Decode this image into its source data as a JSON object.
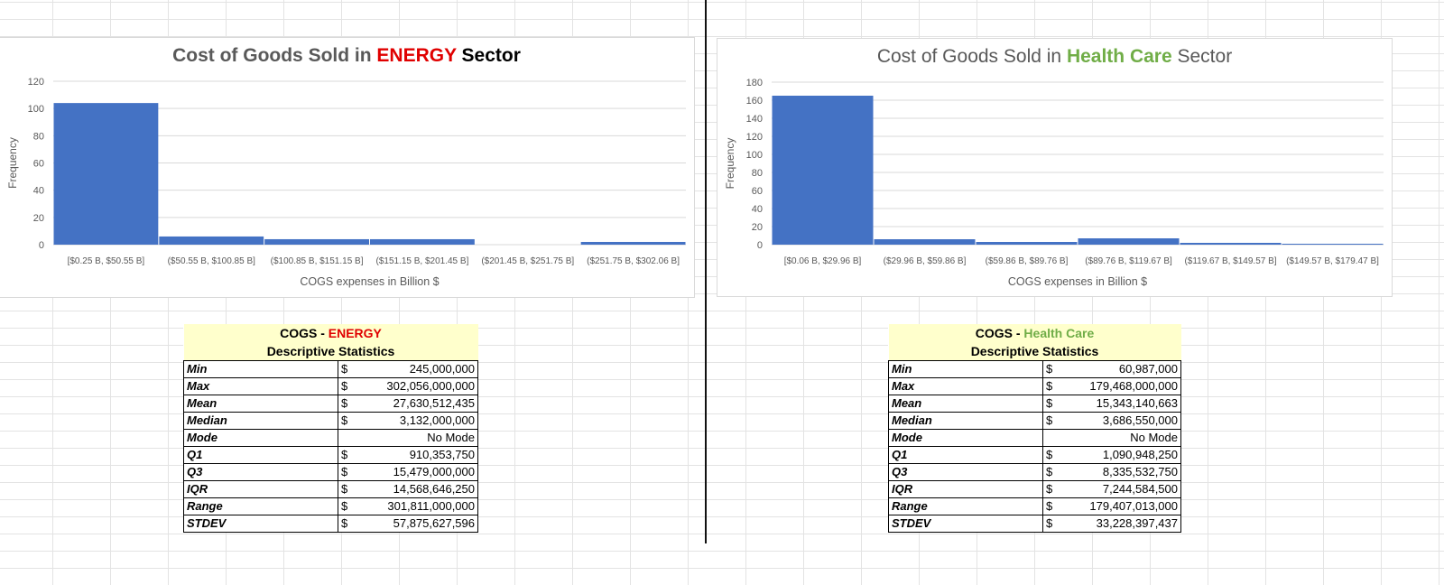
{
  "charts": [
    {
      "id": "energy",
      "title_pre": "Cost of Goods Sold in ",
      "title_highlight": "ENERGY",
      "title_post": " Sector",
      "highlight_color": "#e00000",
      "bar_color": "#4472c4",
      "chart_data": {
        "type": "bar",
        "title": "Cost of Goods Sold in ENERGY Sector",
        "xlabel": "COGS expenses in Billion $",
        "ylabel": "Frequency",
        "categories": [
          "[$0.25 B, $50.55 B]",
          "($50.55 B, $100.85 B]",
          "($100.85 B, $151.15 B]",
          "($151.15 B, $201.45 B]",
          "($201.45 B, $251.75 B]",
          "($251.75 B, $302.06 B]"
        ],
        "values": [
          104,
          6,
          4,
          4,
          0,
          2
        ],
        "ylim": [
          0,
          120
        ],
        "yticks": [
          0,
          20,
          40,
          60,
          80,
          100,
          120
        ],
        "grid": true
      }
    },
    {
      "id": "health",
      "title_pre": "Cost of Goods Sold in ",
      "title_highlight": "Health Care",
      "title_post": " Sector",
      "highlight_color": "#70ad47",
      "bar_color": "#4472c4",
      "chart_data": {
        "type": "bar",
        "title": "Cost of Goods Sold in Health Care Sector",
        "xlabel": "COGS expenses in Billion $",
        "ylabel": "Frequency",
        "categories": [
          "[$0.06 B, $29.96 B]",
          "($29.96 B, $59.86 B]",
          "($59.86 B, $89.76 B]",
          "($89.76 B, $119.67 B]",
          "($119.67 B, $149.57 B]",
          "($149.57 B, $179.47 B]"
        ],
        "values": [
          165,
          6,
          3,
          7,
          2,
          1
        ],
        "ylim": [
          0,
          180
        ],
        "yticks": [
          0,
          20,
          40,
          60,
          80,
          100,
          120,
          140,
          160,
          180
        ],
        "grid": true
      }
    }
  ],
  "tables": [
    {
      "id": "energy",
      "title_pre": "COGS - ",
      "title_highlight": "ENERGY",
      "highlight_color": "#e00000",
      "subtitle": "Descriptive Statistics",
      "currency": "$",
      "rows": [
        {
          "label": "Min",
          "value": "245,000,000",
          "currency": true
        },
        {
          "label": "Max",
          "value": "302,056,000,000",
          "currency": true
        },
        {
          "label": "Mean",
          "value": "27,630,512,435",
          "currency": true
        },
        {
          "label": "Median",
          "value": "3,132,000,000",
          "currency": true
        },
        {
          "label": "Mode",
          "value": "No Mode",
          "currency": false
        },
        {
          "label": "Q1",
          "value": "910,353,750",
          "currency": true
        },
        {
          "label": "Q3",
          "value": "15,479,000,000",
          "currency": true
        },
        {
          "label": "IQR",
          "value": "14,568,646,250",
          "currency": true
        },
        {
          "label": "Range",
          "value": "301,811,000,000",
          "currency": true
        },
        {
          "label": "STDEV",
          "value": "57,875,627,596",
          "currency": true
        }
      ]
    },
    {
      "id": "health",
      "title_pre": "COGS - ",
      "title_highlight": "Health Care",
      "highlight_color": "#70ad47",
      "subtitle": "Descriptive Statistics",
      "currency": "$",
      "rows": [
        {
          "label": "Min",
          "value": "60,987,000",
          "currency": true
        },
        {
          "label": "Max",
          "value": "179,468,000,000",
          "currency": true
        },
        {
          "label": "Mean",
          "value": "15,343,140,663",
          "currency": true
        },
        {
          "label": "Median",
          "value": "3,686,550,000",
          "currency": true
        },
        {
          "label": "Mode",
          "value": "No Mode",
          "currency": false
        },
        {
          "label": "Q1",
          "value": "1,090,948,250",
          "currency": true
        },
        {
          "label": "Q3",
          "value": "8,335,532,750",
          "currency": true
        },
        {
          "label": "IQR",
          "value": "7,244,584,500",
          "currency": true
        },
        {
          "label": "Range",
          "value": "179,407,013,000",
          "currency": true
        },
        {
          "label": "STDEV",
          "value": "33,228,397,437",
          "currency": true
        }
      ]
    }
  ]
}
